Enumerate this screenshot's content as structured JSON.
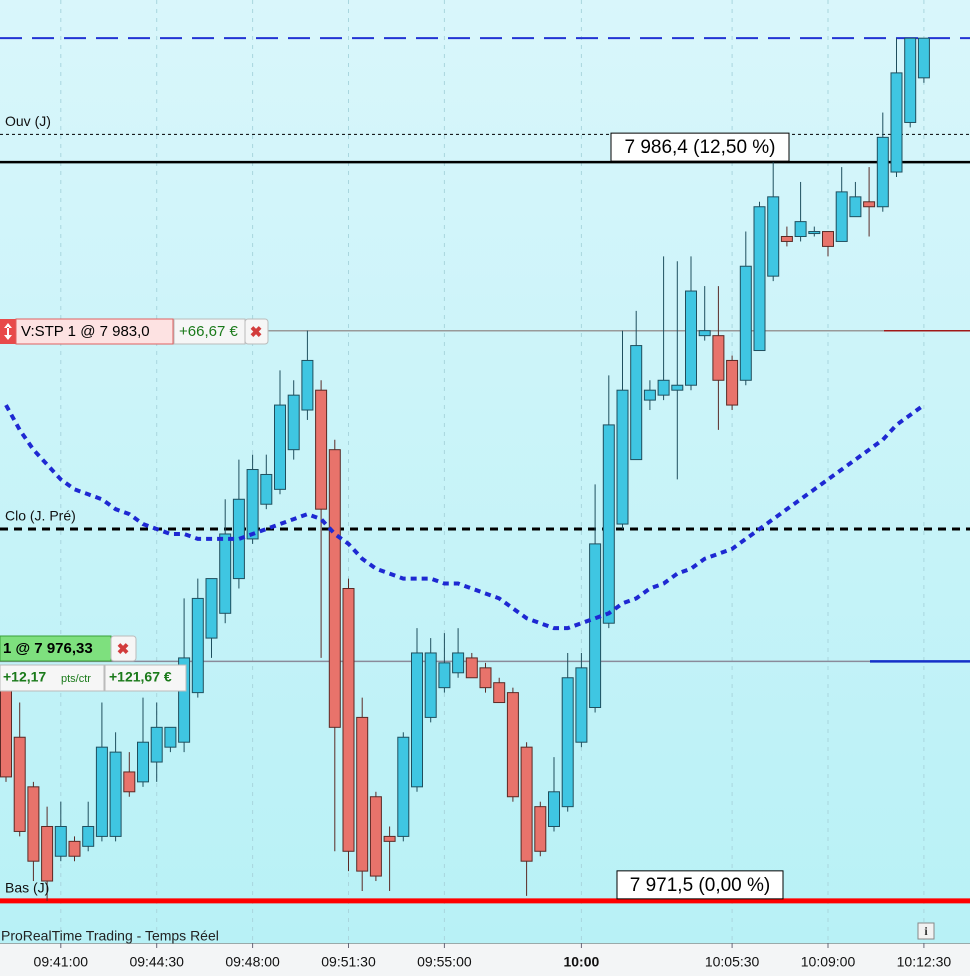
{
  "chart_data": {
    "type": "candlestick",
    "categories": [
      null,
      null,
      null,
      null,
      "09:41:00",
      null,
      null,
      null,
      null,
      null,
      null,
      "09:44:30",
      null,
      null,
      null,
      null,
      null,
      null,
      "09:48:00",
      null,
      null,
      null,
      null,
      null,
      null,
      "09:51:30",
      null,
      null,
      null,
      null,
      null,
      null,
      "09:55:00",
      null,
      null,
      null,
      null,
      null,
      null,
      null,
      null,
      null,
      "10:00",
      null,
      null,
      null,
      null,
      null,
      null,
      null,
      null,
      null,
      null,
      "10:05:30",
      null,
      null,
      null,
      null,
      null,
      null,
      "10:09:00",
      null,
      null,
      null,
      null,
      null,
      null,
      "10:12:30"
    ],
    "open": [
      7975.8,
      7974.8,
      7973.8,
      7973.0,
      7972.4,
      7972.7,
      7972.6,
      7972.8,
      7972.8,
      7974.1,
      7973.9,
      7974.3,
      7974.6,
      7974.7,
      7975.7,
      7976.8,
      7977.3,
      7978.0,
      7978.8,
      7979.5,
      7979.8,
      7980.6,
      7981.4,
      7981.8,
      7980.6,
      7977.8,
      7975.2,
      7973.6,
      7972.8,
      7972.8,
      7973.8,
      7975.2,
      7975.8,
      7976.1,
      7976.4,
      7976.2,
      7975.9,
      7975.7,
      7974.6,
      7973.4,
      7973.0,
      7973.4,
      7974.7,
      7975.4,
      7977.1,
      7979.1,
      7980.4,
      7981.6,
      7981.7,
      7981.8,
      7981.9,
      7982.9,
      7982.9,
      7982.4,
      7982.0,
      7982.6,
      7984.1,
      7984.9,
      7984.9,
      7985.0,
      7985.0,
      7984.8,
      7985.3,
      7985.6,
      7985.5,
      7986.2,
      7987.2,
      7988.1
    ],
    "high": [
      7976.0,
      7975.5,
      7973.9,
      7973.4,
      7973.5,
      7972.8,
      7973.5,
      7975.5,
      7974.9,
      7974.5,
      7975.6,
      7975.5,
      7975.0,
      7977.6,
      7978.0,
      7978.0,
      7979.6,
      7980.4,
      7980.5,
      7980.5,
      7982.2,
      7982.0,
      7983.0,
      7982.0,
      7980.8,
      7978.0,
      7975.6,
      7973.7,
      7973.0,
      7974.9,
      7977.0,
      7976.8,
      7976.9,
      7977.0,
      7976.5,
      7976.3,
      7976.0,
      7975.8,
      7974.7,
      7973.5,
      7974.4,
      7976.5,
      7976.5,
      7979.9,
      7982.1,
      7983.0,
      7983.4,
      7982.0,
      7984.5,
      7984.4,
      7984.5,
      7983.9,
      7983.9,
      7982.5,
      7985.0,
      7985.6,
      7986.4,
      7985.1,
      7986.0,
      7985.1,
      7985.0,
      7986.3,
      7986.0,
      7986.3,
      7987.4,
      7988.9,
      7988.9,
      7988.9
    ],
    "low": [
      7973.9,
      7972.8,
      7971.9,
      7971.5,
      7972.3,
      7972.3,
      7972.5,
      7972.7,
      7972.7,
      7973.6,
      7973.8,
      7973.9,
      7974.5,
      7974.5,
      7975.6,
      7976.4,
      7977.1,
      7977.8,
      7978.7,
      7979.4,
      7979.7,
      7980.4,
      7981.2,
      7976.4,
      7972.5,
      7972.1,
      7971.7,
      7971.9,
      7971.7,
      7972.7,
      7973.7,
      7975.1,
      7975.7,
      7976.0,
      7976.0,
      7975.7,
      7975.5,
      7973.5,
      7971.6,
      7972.4,
      7972.9,
      7973.3,
      7974.6,
      7975.3,
      7977.0,
      7979.0,
      7980.4,
      7981.4,
      7981.6,
      7980.0,
      7981.8,
      7982.8,
      7981.0,
      7981.4,
      7981.9,
      7982.6,
      7984.0,
      7984.7,
      7984.8,
      7984.9,
      7984.5,
      7984.8,
      7985.3,
      7984.9,
      7985.4,
      7986.1,
      7987.1,
      7988.0
    ],
    "close": [
      7974.0,
      7972.9,
      7972.3,
      7971.9,
      7973.0,
      7972.4,
      7973.0,
      7974.6,
      7974.5,
      7973.7,
      7974.7,
      7975.0,
      7975.0,
      7976.4,
      7977.6,
      7978.0,
      7978.9,
      7979.6,
      7980.2,
      7980.1,
      7981.5,
      7981.7,
      7982.4,
      7979.4,
      7975.0,
      7972.5,
      7972.1,
      7972.0,
      7972.7,
      7974.8,
      7976.5,
      7976.5,
      7976.3,
      7976.5,
      7976.0,
      7975.8,
      7975.5,
      7973.6,
      7972.3,
      7972.5,
      7973.7,
      7976.0,
      7976.2,
      7978.7,
      7981.1,
      7981.8,
      7982.7,
      7981.8,
      7982.0,
      7981.9,
      7983.8,
      7983.0,
      7982.0,
      7981.5,
      7984.3,
      7985.5,
      7985.7,
      7984.8,
      7985.2,
      7985.0,
      7984.7,
      7985.8,
      7985.7,
      7985.5,
      7986.9,
      7988.2,
      7988.9,
      7988.9
    ],
    "up_color": "#3fc6e2",
    "down_color": "#e8736b",
    "ma": {
      "color": "#1e28d2",
      "values": [
        7981.5,
        7981.0,
        7980.6,
        7980.3,
        7980.0,
        7979.8,
        7979.7,
        7979.6,
        7979.4,
        7979.3,
        7979.1,
        7979.0,
        7978.9,
        7978.9,
        7978.8,
        7978.8,
        7978.8,
        7978.8,
        7978.9,
        7979.0,
        7979.1,
        7979.2,
        7979.3,
        7979.2,
        7978.9,
        7978.7,
        7978.4,
        7978.2,
        7978.1,
        7978.0,
        7978.0,
        7978.0,
        7977.9,
        7977.9,
        7977.8,
        7977.7,
        7977.6,
        7977.4,
        7977.2,
        7977.1,
        7977.0,
        7977.0,
        7977.1,
        7977.2,
        7977.3,
        7977.5,
        7977.6,
        7977.8,
        7977.9,
        7978.1,
        7978.2,
        7978.4,
        7978.5,
        7978.6,
        7978.8,
        7979.0,
        7979.2,
        7979.4,
        7979.6,
        7979.8,
        7980.0,
        7980.2,
        7980.4,
        7980.6,
        7980.8,
        7981.1,
        7981.3,
        7981.5
      ]
    },
    "ylim": [
      7970.65,
      7989.67
    ],
    "grid": true,
    "levels": [
      {
        "value": 7988.9,
        "color": "#2233d4",
        "dash": "dashed",
        "width": 2
      },
      {
        "value": 7986.96,
        "color": "#000000",
        "dash": "dotted",
        "width": 1,
        "label": "Ouv (J)"
      },
      {
        "value": 7986.4,
        "color": "#000000",
        "dash": "solid",
        "width": 2.5,
        "box": "7 986,4 (12,50 %)"
      },
      {
        "value": 7983.0,
        "color": "#999999",
        "dash": "solid",
        "width": 1.5
      },
      {
        "value": 7979.0,
        "color": "#000000",
        "dash": "dashed",
        "width": 3,
        "label": "Clo (J. Pré)"
      },
      {
        "value": 7976.33,
        "color": "#8a8a9a",
        "dash": "solid",
        "width": 1.5
      },
      {
        "value": 7971.5,
        "color": "#ff0000",
        "dash": "solid",
        "width": 5,
        "label": "Bas (J)",
        "box": "7 971,5 (0,00 %)"
      }
    ],
    "orders": {
      "stop": {
        "text": "V:STP  1  @  7 983,0",
        "gain": "+66,67 €"
      },
      "position": {
        "text": "1  @  7 976,33",
        "points": "+12,17",
        "unit": "pts/ctr",
        "gain": "+121,67 €"
      }
    },
    "footer": "ProRealTime Trading - Temps Réel"
  }
}
